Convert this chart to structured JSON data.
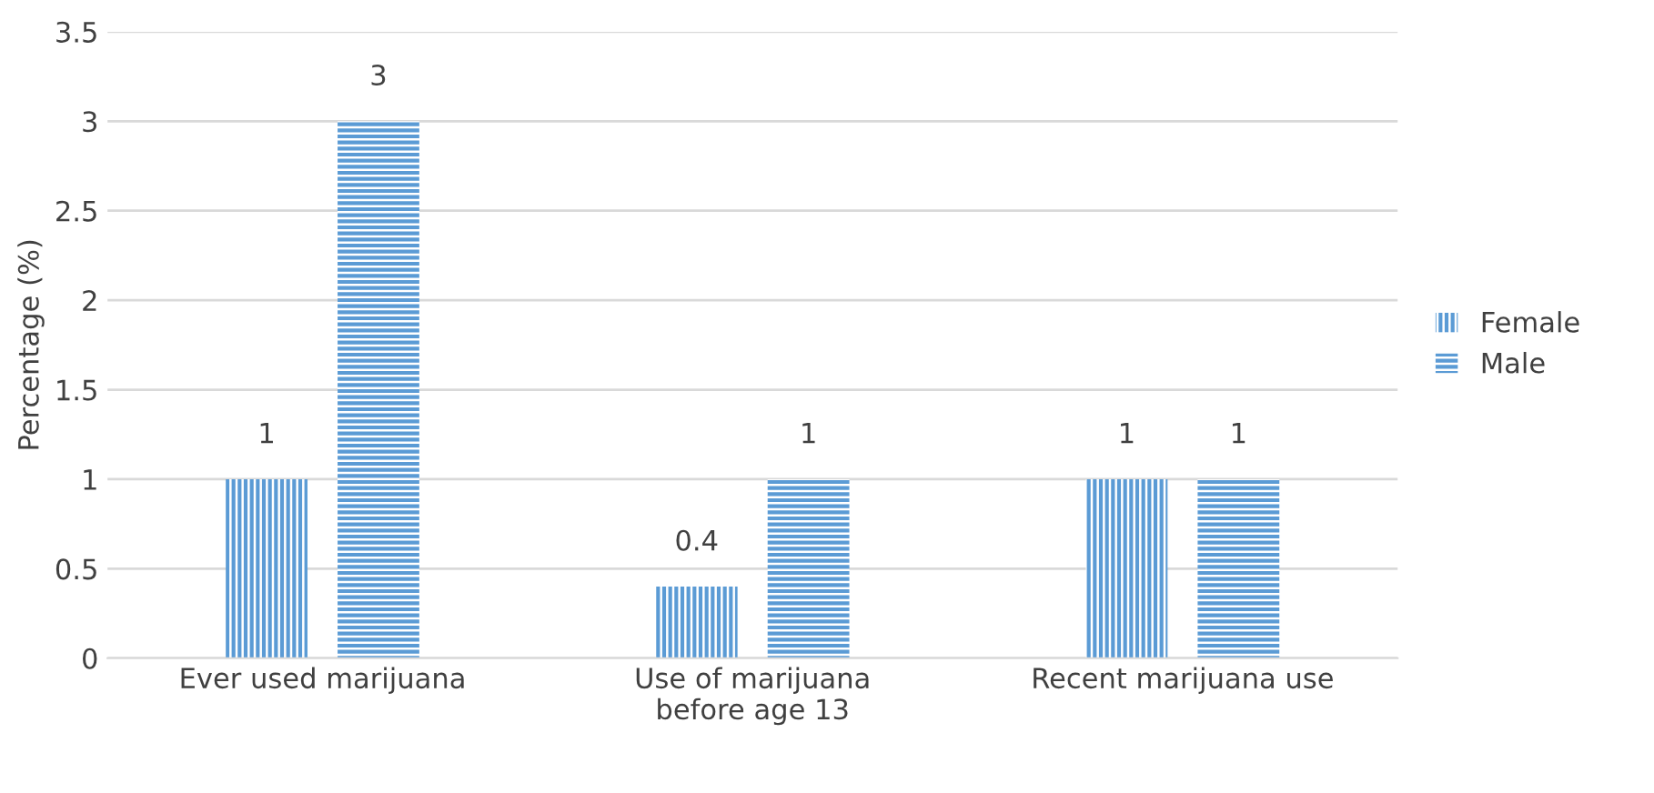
{
  "chart_data": {
    "type": "bar",
    "ylabel": "Percentage (%)",
    "categories": [
      "Ever used marijuana",
      "Use of marijuana\nbefore age 13",
      "Recent marijuana use"
    ],
    "series": [
      {
        "name": "Female",
        "color": "#5b9bd5",
        "values": [
          1,
          0.4,
          1
        ]
      },
      {
        "name": "Male",
        "color": "#5b9bd5",
        "values": [
          3,
          1,
          1
        ]
      }
    ],
    "ylim": [
      0,
      3.5
    ],
    "yticks": [
      0,
      0.5,
      1,
      1.5,
      2,
      2.5,
      3,
      3.5
    ],
    "grid": "y",
    "legend": "right",
    "data_labels": true
  }
}
